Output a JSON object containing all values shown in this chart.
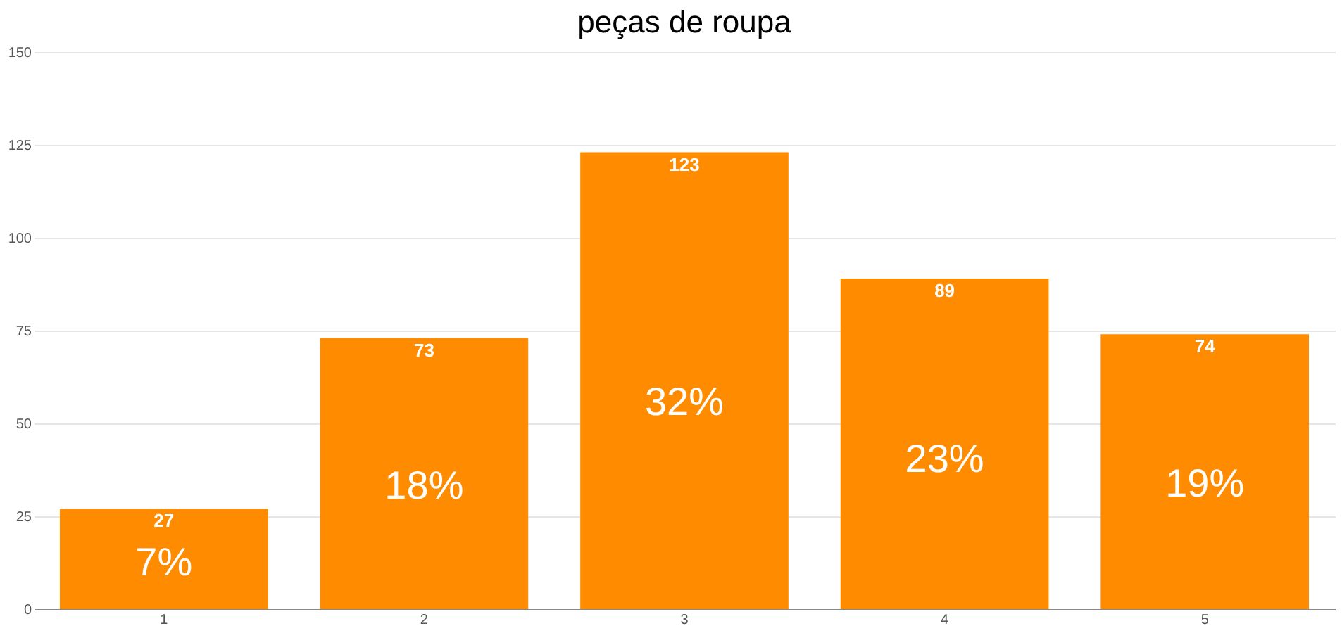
{
  "chart_data": {
    "type": "bar",
    "title": "peças de roupa",
    "categories": [
      "1",
      "2",
      "3",
      "4",
      "5"
    ],
    "values": [
      27,
      73,
      123,
      89,
      74
    ],
    "annotations": [
      "7%",
      "18%",
      "32%",
      "23%",
      "19%"
    ],
    "data_labels": true,
    "color": "#ff8c00",
    "ylim": [
      0,
      150
    ],
    "yticks": [
      0,
      25,
      50,
      75,
      100,
      125,
      150
    ],
    "grid": "y"
  }
}
